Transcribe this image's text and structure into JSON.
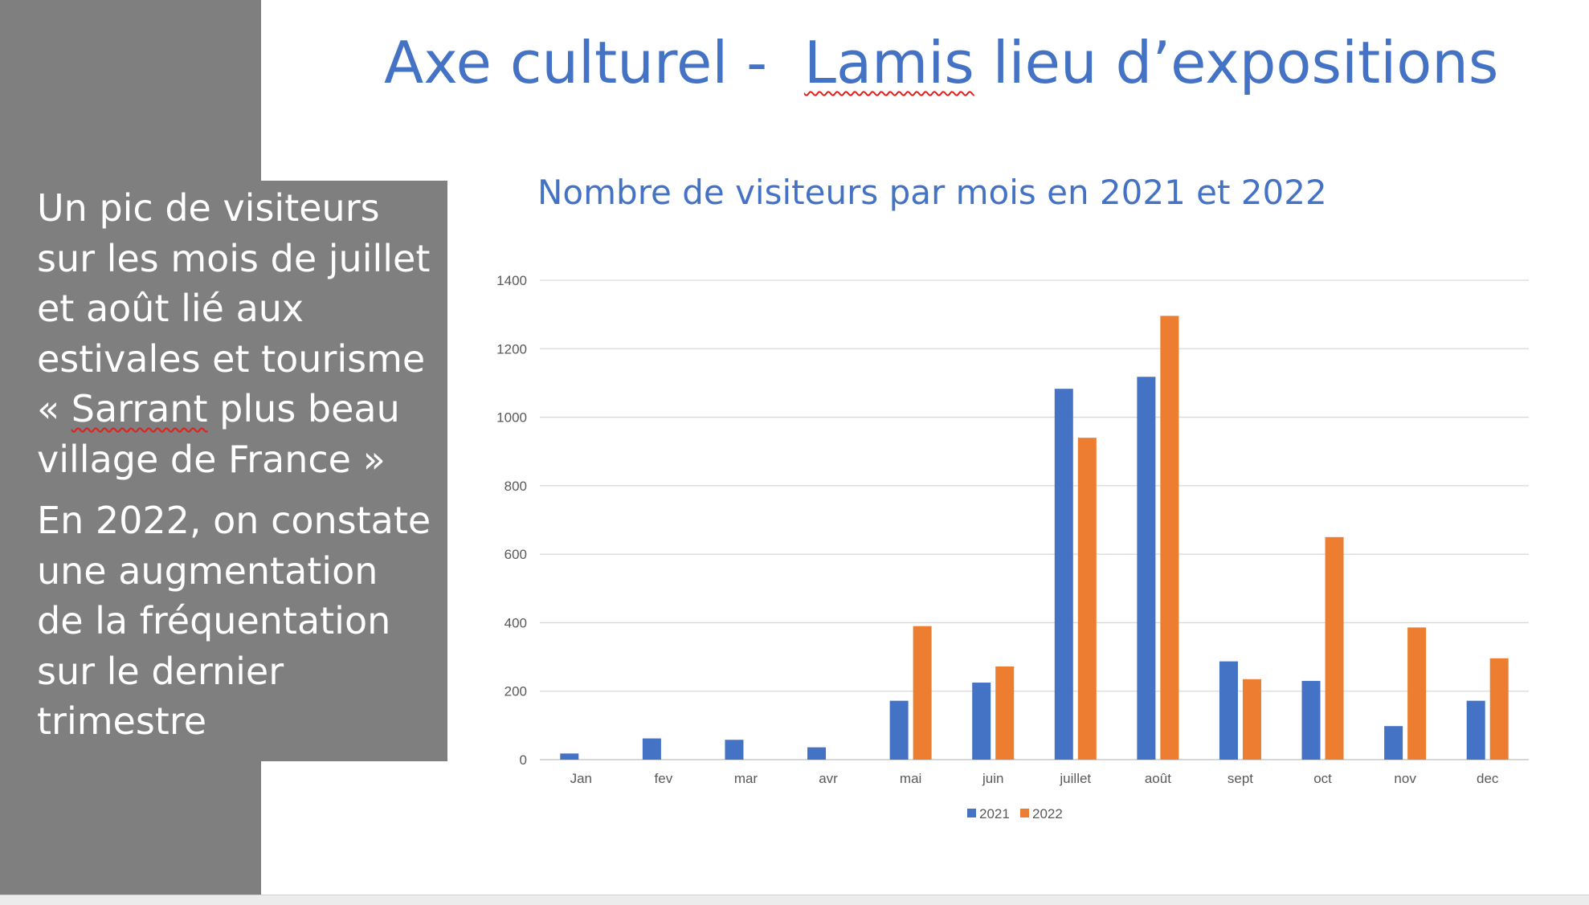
{
  "slide": {
    "title_prefix": "Axe culturel -  ",
    "title_underlined": "Lamis",
    "title_suffix": " lieu d’expositions",
    "paragraph1": {
      "line1": "Un pic de visiteurs",
      "line2": "sur les mois de juillet",
      "line3": "et août lié aux",
      "line4": "estivales et tourisme",
      "line5_before": "« ",
      "line5_underlined": "Sarrant",
      "line5_after": " plus beau",
      "line6": "village de France »"
    },
    "paragraph2": {
      "line1": "En 2022, on constate",
      "line2": "une augmentation",
      "line3": "de la fréquentation",
      "line4": "sur le dernier",
      "line5": "trimestre"
    }
  },
  "chart_data": {
    "type": "bar",
    "title": "Nombre de visiteurs par mois en 2021 et 2022",
    "xlabel": "",
    "ylabel": "",
    "ylim": [
      0,
      1400
    ],
    "yticks": [
      "0",
      "200",
      "400",
      "600",
      "800",
      "1000",
      "1200",
      "1400"
    ],
    "grid": true,
    "legend_position": "bottom",
    "categories": [
      "Jan",
      "fev",
      "mar",
      "avr",
      "mai",
      "juin",
      "juillet",
      "août",
      "sept",
      "oct",
      "nov",
      "dec"
    ],
    "series": [
      {
        "name": "2021",
        "color": "#4472c4",
        "values": [
          18,
          62,
          58,
          36,
          172,
          225,
          1083,
          1118,
          287,
          230,
          98,
          172
        ]
      },
      {
        "name": "2022",
        "color": "#ed7d31",
        "values": [
          0,
          0,
          0,
          0,
          390,
          272,
          940,
          1296,
          235,
          650,
          386,
          296
        ]
      }
    ]
  }
}
